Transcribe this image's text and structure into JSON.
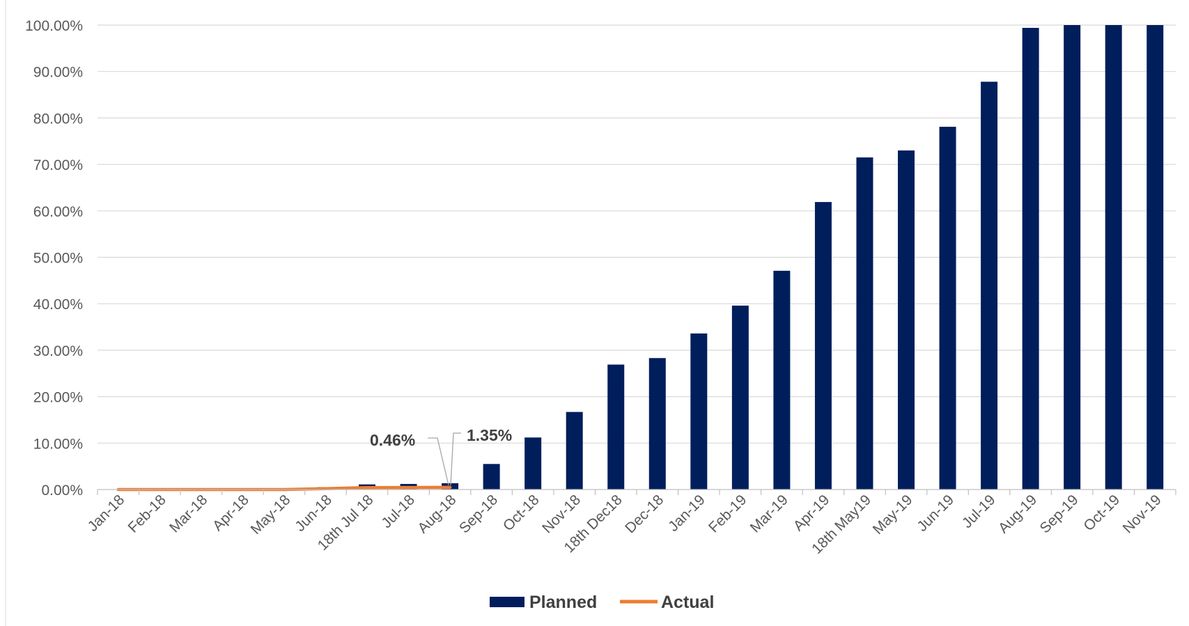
{
  "colors": {
    "planned": "#001e5c",
    "actual": "#ed7d31"
  },
  "chart_data": {
    "type": "bar",
    "categories": [
      "Jan-18",
      "Feb-18",
      "Mar-18",
      "Apr-18",
      "May-18",
      "Jun-18",
      "18th Jul 18",
      "Jul-18",
      "Aug-18",
      "Sep-18",
      "Oct-18",
      "Nov-18",
      "18th Dec18",
      "Dec-18",
      "Jan-19",
      "Feb-19",
      "Mar-19",
      "Apr-19",
      "18th May19",
      "May-19",
      "Jun-19",
      "Jul-19",
      "Aug-19",
      "Sep-19",
      "Oct-19",
      "Nov-19"
    ],
    "series": [
      {
        "name": "Planned",
        "type": "bar",
        "color": "#001e5c",
        "values": [
          0,
          0,
          0,
          0,
          0,
          0.5,
          1.1,
          1.2,
          1.35,
          5.5,
          11.2,
          16.7,
          26.9,
          28.3,
          33.6,
          39.6,
          47.1,
          61.9,
          71.5,
          73.0,
          78.1,
          87.8,
          99.4,
          100,
          100,
          100
        ]
      },
      {
        "name": "Actual",
        "type": "line",
        "color": "#ed7d31",
        "values": [
          0,
          0,
          0,
          0,
          0,
          0.2,
          0.42,
          0.44,
          0.46,
          null,
          null,
          null,
          null,
          null,
          null,
          null,
          null,
          null,
          null,
          null,
          null,
          null,
          null,
          null,
          null,
          null
        ]
      }
    ],
    "ylim": [
      0,
      100
    ],
    "y_ticks": [
      "0.00%",
      "10.00%",
      "20.00%",
      "30.00%",
      "40.00%",
      "50.00%",
      "60.00%",
      "70.00%",
      "80.00%",
      "90.00%",
      "100.00%"
    ],
    "annotations": [
      "0.46%",
      "1.35%"
    ],
    "grid": true,
    "legend": "bottom",
    "title": "",
    "xlabel": "",
    "ylabel": ""
  }
}
